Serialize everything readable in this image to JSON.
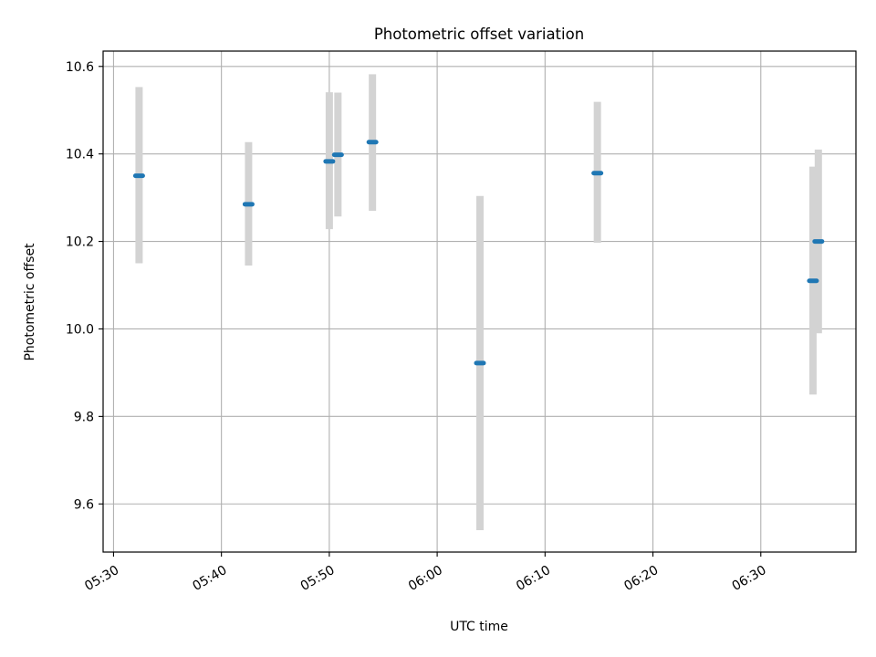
{
  "chart_data": {
    "type": "scatter",
    "title": "Photometric offset variation",
    "xlabel": "UTC time",
    "ylabel": "Photometric offset",
    "x_ticks": [
      "05:30",
      "05:40",
      "05:50",
      "06:00",
      "06:10",
      "06:20",
      "06:30"
    ],
    "y_ticks": [
      "9.6",
      "9.8",
      "10.0",
      "10.2",
      "10.4",
      "10.6"
    ],
    "xlim": [
      "05:29:02",
      "06:38:49"
    ],
    "ylim": [
      9.49,
      10.635
    ],
    "grid": true,
    "points": [
      {
        "time": "05:32:22",
        "y": 10.35,
        "err_low": 10.15,
        "err_high": 10.553
      },
      {
        "time": "05:42:31",
        "y": 10.285,
        "err_low": 10.145,
        "err_high": 10.427
      },
      {
        "time": "05:50:00",
        "y": 10.383,
        "err_low": 10.228,
        "err_high": 10.541
      },
      {
        "time": "05:50:48",
        "y": 10.398,
        "err_low": 10.257,
        "err_high": 10.54
      },
      {
        "time": "05:54:00",
        "y": 10.427,
        "err_low": 10.27,
        "err_high": 10.582
      },
      {
        "time": "06:03:58",
        "y": 9.922,
        "err_low": 9.54,
        "err_high": 10.304
      },
      {
        "time": "06:14:51",
        "y": 10.356,
        "err_low": 10.197,
        "err_high": 10.519
      },
      {
        "time": "06:34:50",
        "y": 10.11,
        "err_low": 9.85,
        "err_high": 10.371
      },
      {
        "time": "06:35:20",
        "y": 10.2,
        "err_low": 9.99,
        "err_high": 10.41
      }
    ],
    "colors": {
      "point": "#1f77b4",
      "errorbar": "#d3d3d3",
      "grid": "#b0b0b0"
    }
  }
}
